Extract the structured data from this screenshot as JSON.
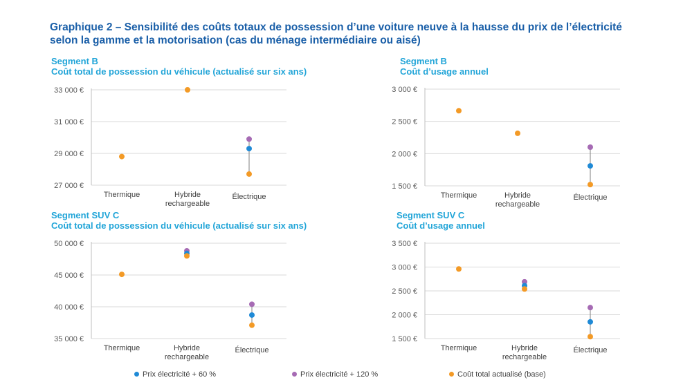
{
  "title": {
    "line1": "Graphique 2 – Sensibilité des coûts totaux de possession d’une voiture neuve à la hausse du prix de l’électricité",
    "line2": "selon la gamme et la motorisation (cas du ménage intermédiaire ou aisé)"
  },
  "colors": {
    "base": "#f39a26",
    "plus60": "#1f8ad6",
    "plus120": "#a66bb4",
    "title": "#1a5fa8",
    "subtitle": "#22a5d8"
  },
  "panels": [
    {
      "segment": "Segment B",
      "subtitle": "Coût total de possession du véhicule (actualisé sur six ans)"
    },
    {
      "segment": "Segment B",
      "subtitle": "Coût d’usage annuel"
    },
    {
      "segment": "Segment SUV C",
      "subtitle": "Coût total de possession du véhicule (actualisé sur six ans)"
    },
    {
      "segment": "Segment SUV C",
      "subtitle": "Coût d’usage annuel"
    }
  ],
  "legend": [
    {
      "label": "Prix électricité + 60 %",
      "color": "#1f8ad6"
    },
    {
      "label": "Prix électricité + 120 %",
      "color": "#a66bb4"
    },
    {
      "label": "Coût total actualisé (base)",
      "color": "#f39a26"
    }
  ],
  "chart_data": [
    {
      "type": "scatter",
      "title": "Segment B — Coût total de possession du véhicule (actualisé sur six ans)",
      "categories": [
        "Thermique",
        "Hybride rechargeable",
        "Électrique"
      ],
      "ylim": [
        27000,
        33000
      ],
      "yticks": [
        "33 000 €",
        "31 000 €",
        "29 000 €",
        "27 000 €"
      ],
      "ytick_values": [
        33000,
        31000,
        29000,
        27000
      ],
      "grid": true,
      "series": [
        {
          "name": "Coût total actualisé (base)",
          "values": [
            28800,
            33000,
            27700
          ]
        },
        {
          "name": "Prix électricité + 60 %",
          "values": [
            null,
            null,
            29300
          ]
        },
        {
          "name": "Prix électricité + 120 %",
          "values": [
            null,
            null,
            29900
          ]
        }
      ]
    },
    {
      "type": "scatter",
      "title": "Segment B — Coût d’usage annuel",
      "categories": [
        "Thermique",
        "Hybride rechargeable",
        "Électrique"
      ],
      "ylim": [
        1500,
        3000
      ],
      "yticks": [
        "3 000 €",
        "2 500 €",
        "2 000 €",
        "1 500 €"
      ],
      "ytick_values": [
        3000,
        2500,
        2000,
        1500
      ],
      "grid": true,
      "series": [
        {
          "name": "Coût total actualisé (base)",
          "values": [
            2665,
            2315,
            1520
          ]
        },
        {
          "name": "Prix électricité + 60 %",
          "values": [
            null,
            null,
            1810
          ]
        },
        {
          "name": "Prix électricité + 120 %",
          "values": [
            null,
            null,
            2100
          ]
        }
      ]
    },
    {
      "type": "scatter",
      "title": "Segment SUV C — Coût total de possession du véhicule (actualisé sur six ans)",
      "categories": [
        "Thermique",
        "Hybride rechargeable",
        "Électrique"
      ],
      "ylim": [
        35000,
        50000
      ],
      "yticks": [
        "50 000 €",
        "45 000 €",
        "40 000 €",
        "35 000 €"
      ],
      "ytick_values": [
        50000,
        45000,
        40000,
        35000
      ],
      "grid": true,
      "series": [
        {
          "name": "Coût total actualisé (base)",
          "values": [
            45100,
            48000,
            37100
          ]
        },
        {
          "name": "Prix électricité + 60 %",
          "values": [
            null,
            48400,
            38700
          ]
        },
        {
          "name": "Prix électricité + 120 %",
          "values": [
            null,
            48800,
            40400
          ]
        }
      ]
    },
    {
      "type": "scatter",
      "title": "Segment SUV C — Coût d’usage annuel",
      "categories": [
        "Thermique",
        "Hybride rechargeable",
        "Électrique"
      ],
      "ylim": [
        1500,
        3500
      ],
      "yticks": [
        "3 500 €",
        "3 000 €",
        "2 500 €",
        "2 000 €",
        "1 500 €"
      ],
      "ytick_values": [
        3500,
        3000,
        2500,
        2000,
        1500
      ],
      "grid": true,
      "series": [
        {
          "name": "Coût total actualisé (base)",
          "values": [
            2960,
            2540,
            1540
          ]
        },
        {
          "name": "Prix électricité + 60 %",
          "values": [
            null,
            2610,
            1850
          ]
        },
        {
          "name": "Prix électricité + 120 %",
          "values": [
            null,
            2690,
            2150
          ]
        }
      ]
    }
  ]
}
